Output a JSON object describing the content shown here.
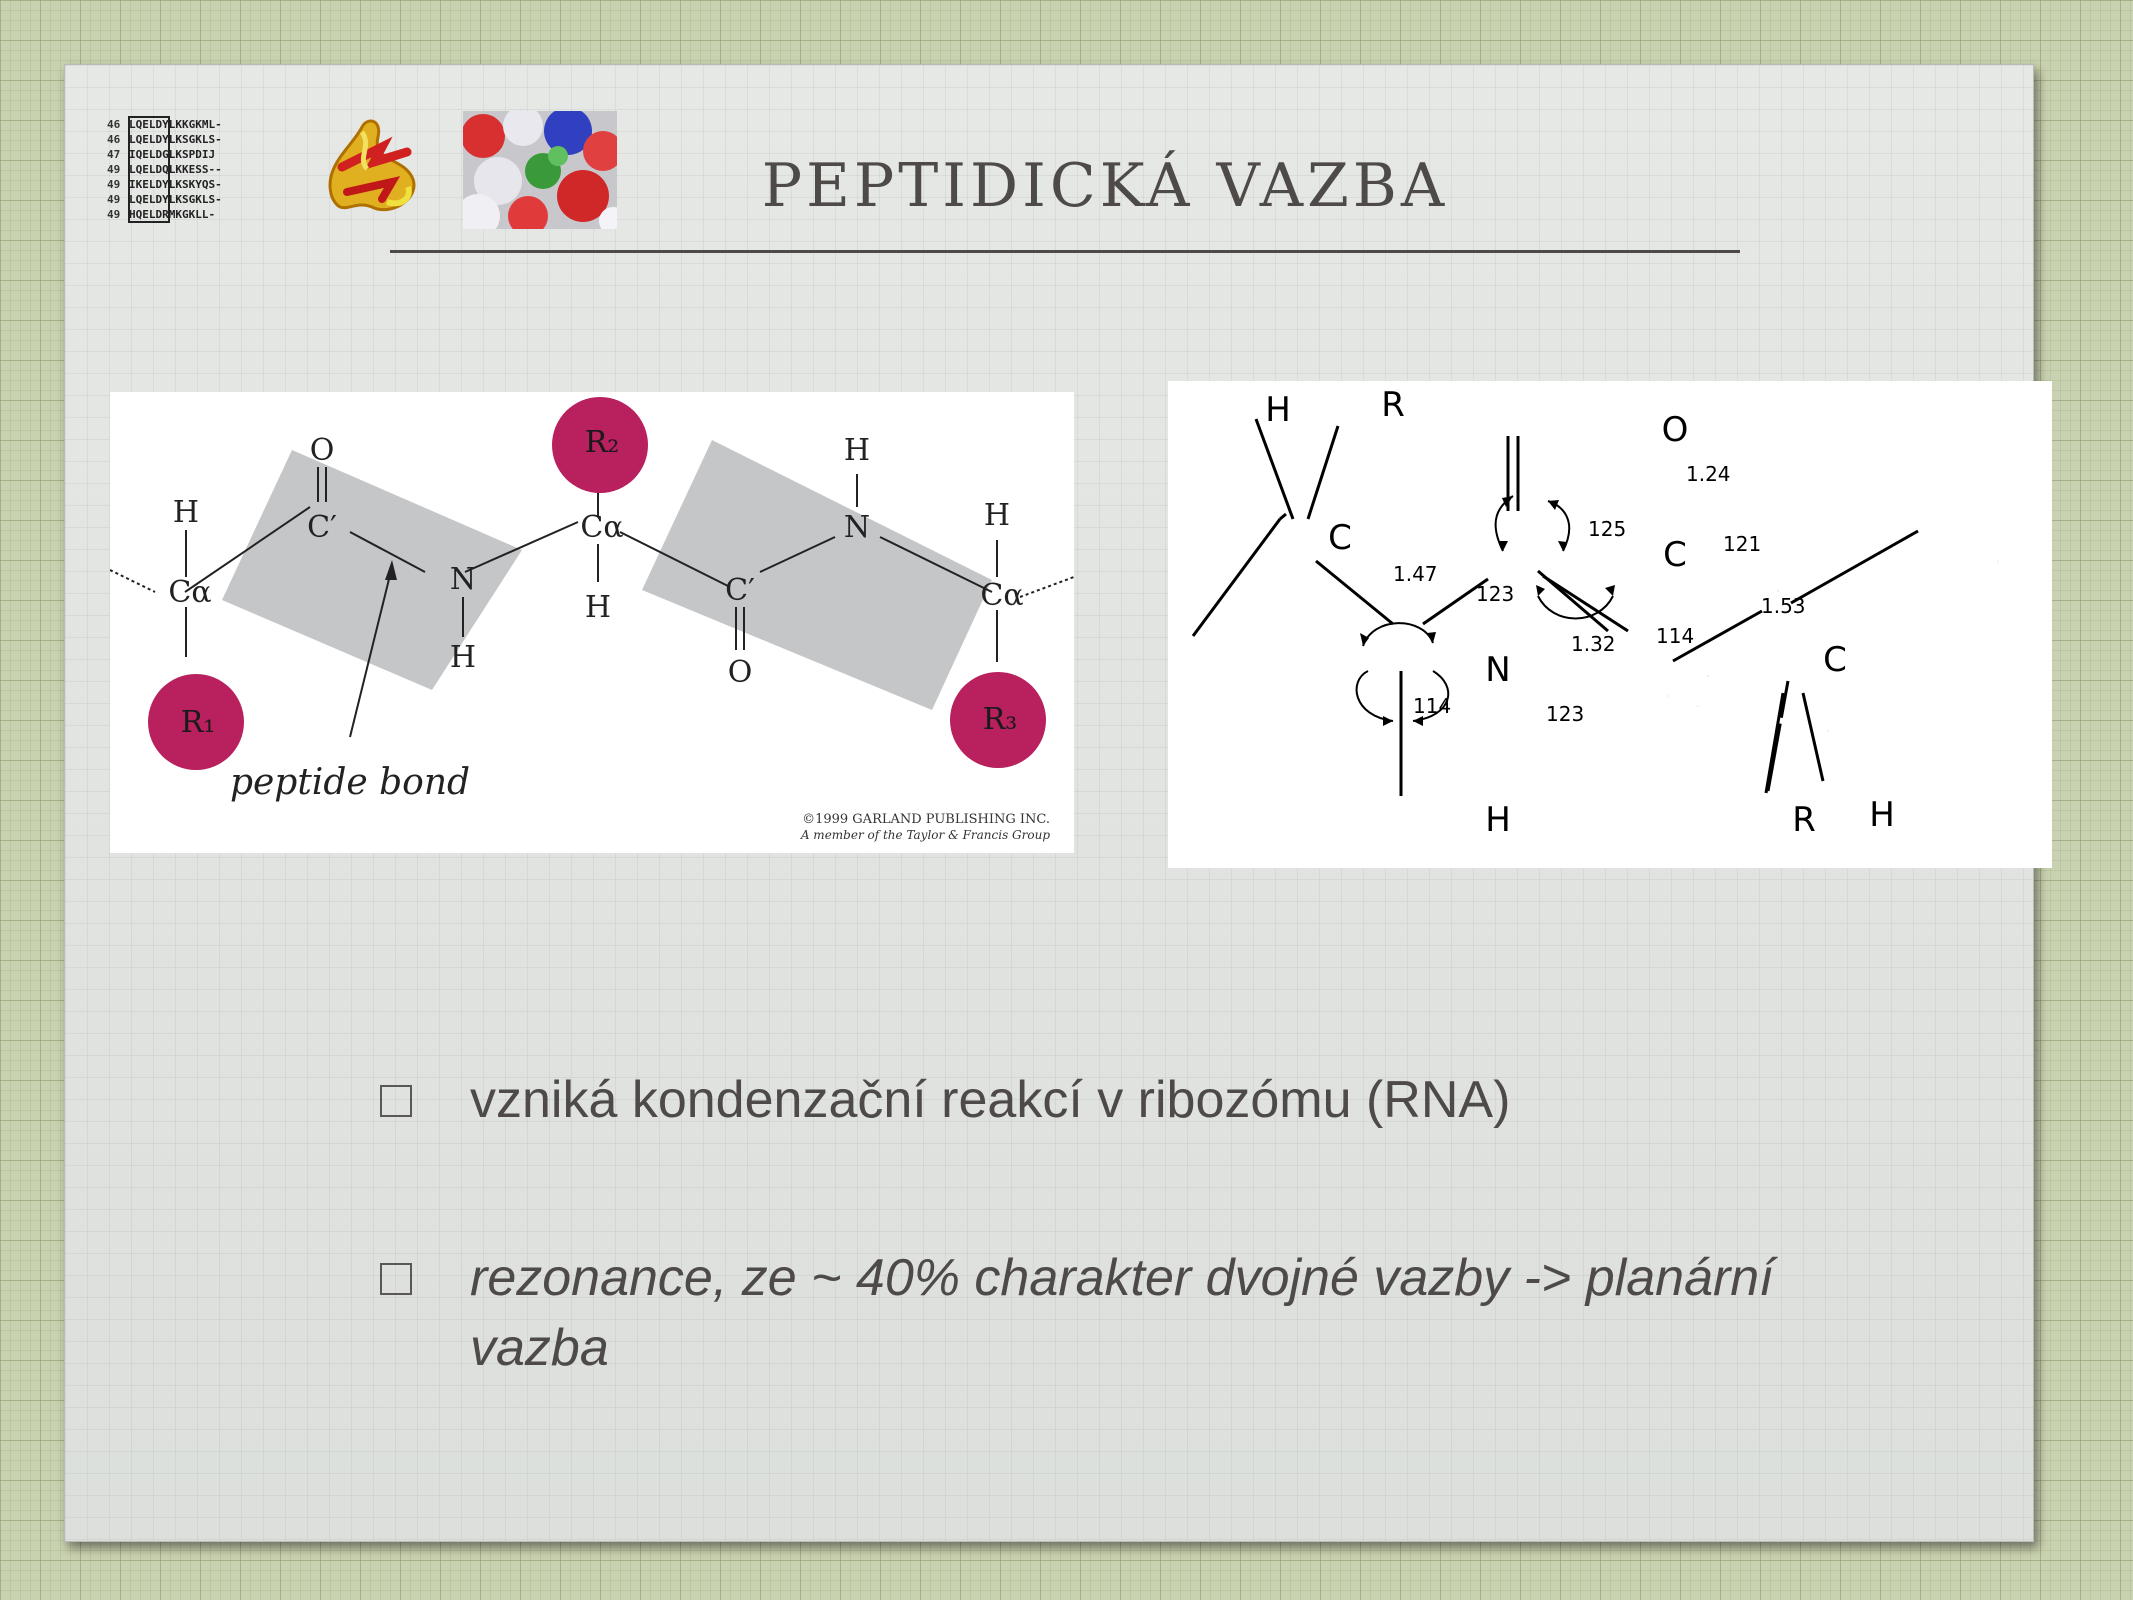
{
  "slide": {
    "title": "PEPTIDICKÁ VAZBA",
    "bullets": [
      "vzniká kondenzační reakcí v ribozómu (RNA)",
      "rezonance, ze ~ 40% charakter dvojné vazby -> planární vazba"
    ]
  },
  "logos": {
    "seq_rows": [
      {
        "num": "46",
        "seq": "LQELDYLKKGKML-"
      },
      {
        "num": "46",
        "seq": "LQELDYLKSGKLS-"
      },
      {
        "num": "47",
        "seq": "IQELDGLKSPDIJ"
      },
      {
        "num": "49",
        "seq": "LQELDQLKKESS--"
      },
      {
        "num": "49",
        "seq": "IKELDYLKSKYQS-"
      },
      {
        "num": "49",
        "seq": "LQELDYLKSGKLS-"
      },
      {
        "num": "49",
        "seq": "HQELDRMKGKLL-"
      }
    ]
  },
  "diagram_left": {
    "atoms": {
      "ca1": "Cα",
      "h1": "H",
      "r1": "R₁",
      "c1": "C′",
      "o1": "O",
      "n1": "N",
      "hn1": "H",
      "ca2": "Cα",
      "r2": "R₂",
      "h2": "H",
      "c2": "C′",
      "o2": "O",
      "n2": "N",
      "hn2": "H",
      "ca3": "Cα",
      "h3": "H",
      "r3": "R₃"
    },
    "annotation": "peptide bond",
    "copyright_line1": "©1999 GARLAND PUBLISHING INC.",
    "copyright_line2": "A member of the Taylor & Francis Group"
  },
  "diagram_right": {
    "atoms": {
      "c_left": "C",
      "h_top": "H",
      "r_top": "R",
      "n": "N",
      "h_n": "H",
      "c_carbonyl": "C",
      "o": "O",
      "c_right": "C",
      "r_bottom": "R",
      "h_bottom": "H"
    },
    "bond_lengths": {
      "c_n": "1.47",
      "n_c": "1.32",
      "c_o": "1.24",
      "c_c": "1.53"
    },
    "bond_angles": {
      "c_n_c": "123",
      "n_c_c": "114",
      "c_n_h": "114",
      "h_n_c": "123",
      "o_c_n": "125",
      "o_c_c": "121"
    }
  }
}
